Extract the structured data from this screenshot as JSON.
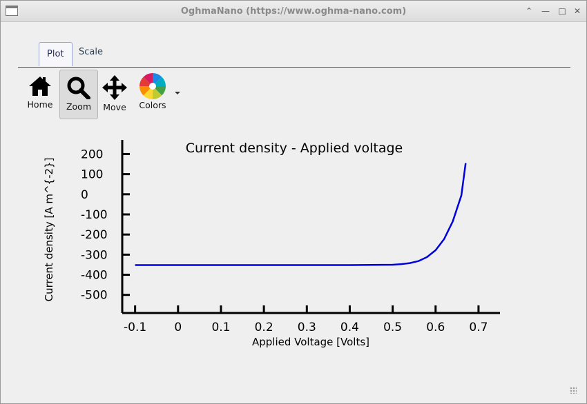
{
  "window": {
    "title": "OghmaNano (https://www.oghma-nano.com)"
  },
  "tabs": [
    {
      "label": "Plot",
      "active": true
    },
    {
      "label": "Scale",
      "active": false
    }
  ],
  "toolbar": {
    "home_label": "Home",
    "zoom_label": "Zoom",
    "move_label": "Move",
    "colors_label": "Colors"
  },
  "chart_data": {
    "type": "line",
    "title": "Current density - Applied voltage",
    "xlabel": "Applied Voltage [Volts]",
    "ylabel": "Current density [A m^{-2}]",
    "xlim": [
      -0.13,
      0.75
    ],
    "ylim": [
      -590,
      270
    ],
    "xticks": [
      -0.1,
      0,
      0.1,
      0.2,
      0.3,
      0.4,
      0.5,
      0.6,
      0.7
    ],
    "xtick_labels": [
      "-0.1",
      "0",
      "0.1",
      "0.2",
      "0.3",
      "0.4",
      "0.5",
      "0.6",
      "0.7"
    ],
    "yticks": [
      200,
      100,
      0,
      -100,
      -200,
      -300,
      -400,
      -500
    ],
    "ytick_labels": [
      "200",
      "100",
      "0",
      "-100",
      "-200",
      "-300",
      "-400",
      "-500"
    ],
    "series": [
      {
        "color": "#0000dd",
        "x": [
          -0.1,
          0.0,
          0.1,
          0.2,
          0.3,
          0.4,
          0.45,
          0.5,
          0.52,
          0.54,
          0.56,
          0.58,
          0.6,
          0.62,
          0.64,
          0.66,
          0.67
        ],
        "y": [
          -352,
          -352,
          -352,
          -352,
          -352,
          -352,
          -351,
          -350,
          -347,
          -342,
          -332,
          -312,
          -278,
          -222,
          -135,
          -5,
          155
        ]
      }
    ]
  }
}
